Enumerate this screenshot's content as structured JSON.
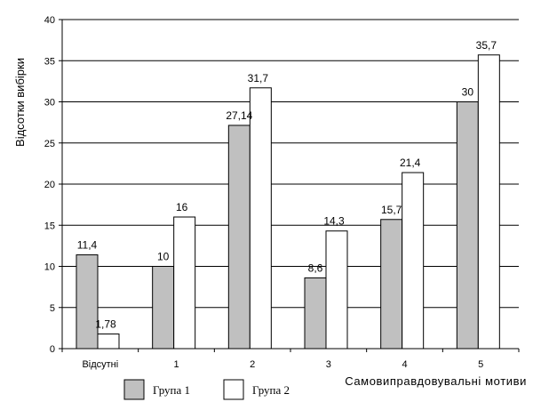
{
  "chart_data": {
    "type": "bar",
    "title": "",
    "xlabel": "Самовиправдовувальні мотиви",
    "ylabel": "Відсотки вибірки",
    "categories": [
      "Відсутні",
      "1",
      "2",
      "3",
      "4",
      "5"
    ],
    "series": [
      {
        "name": "Група 1",
        "color": "#c0c0c0",
        "values": [
          11.4,
          10,
          27.14,
          8.6,
          15.7,
          30
        ],
        "labels": [
          "11,4",
          "10",
          "27,14",
          "8,6",
          "15,7",
          "30"
        ]
      },
      {
        "name": "Група 2",
        "color": "#ffffff",
        "values": [
          1.78,
          16,
          31.7,
          14.3,
          21.4,
          35.7
        ],
        "labels": [
          "1,78",
          "16",
          "31,7",
          "14,3",
          "21,4",
          "35,7"
        ]
      }
    ],
    "ylim": [
      0,
      40
    ],
    "yticks": [
      0,
      5,
      10,
      15,
      20,
      25,
      30,
      35,
      40
    ],
    "grid": true,
    "legend_position": "bottom"
  }
}
